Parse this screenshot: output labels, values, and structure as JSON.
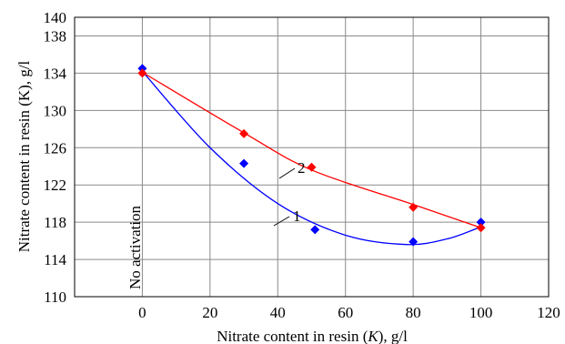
{
  "chart_data": {
    "type": "scatter",
    "xlabel_prefix": "Nitrate content in resin (",
    "xlabel_var": "K",
    "xlabel_suffix": "), g/l",
    "ylabel": "Nitrate content in resin (K), g/l",
    "xlim": [
      -20,
      120
    ],
    "ylim": [
      110,
      140
    ],
    "xticks": [
      0,
      20,
      40,
      60,
      80,
      100,
      120
    ],
    "yticks": [
      110,
      114,
      118,
      122,
      126,
      130,
      134,
      138,
      140
    ],
    "grid": true,
    "annotation": "No activation",
    "series": [
      {
        "name": "1",
        "color": "#0000ff",
        "marker": "diamond",
        "points": [
          [
            0,
            134.5
          ],
          [
            30,
            124.3
          ],
          [
            51,
            117.2
          ],
          [
            80,
            115.9
          ],
          [
            100,
            118.0
          ]
        ],
        "fit": [
          [
            0,
            134.2
          ],
          [
            20,
            126.0
          ],
          [
            40,
            120.0
          ],
          [
            60,
            116.6
          ],
          [
            78,
            115.6
          ],
          [
            90,
            116.2
          ],
          [
            100,
            117.5
          ]
        ]
      },
      {
        "name": "2",
        "color": "#ff0000",
        "marker": "diamond",
        "points": [
          [
            0,
            134.0
          ],
          [
            30,
            127.5
          ],
          [
            50,
            123.9
          ],
          [
            80,
            119.6
          ],
          [
            100,
            117.4
          ]
        ],
        "fit": [
          [
            0,
            134.1
          ],
          [
            30,
            127.6
          ],
          [
            50,
            123.6
          ],
          [
            80,
            119.9
          ],
          [
            100,
            117.4
          ]
        ]
      }
    ]
  }
}
